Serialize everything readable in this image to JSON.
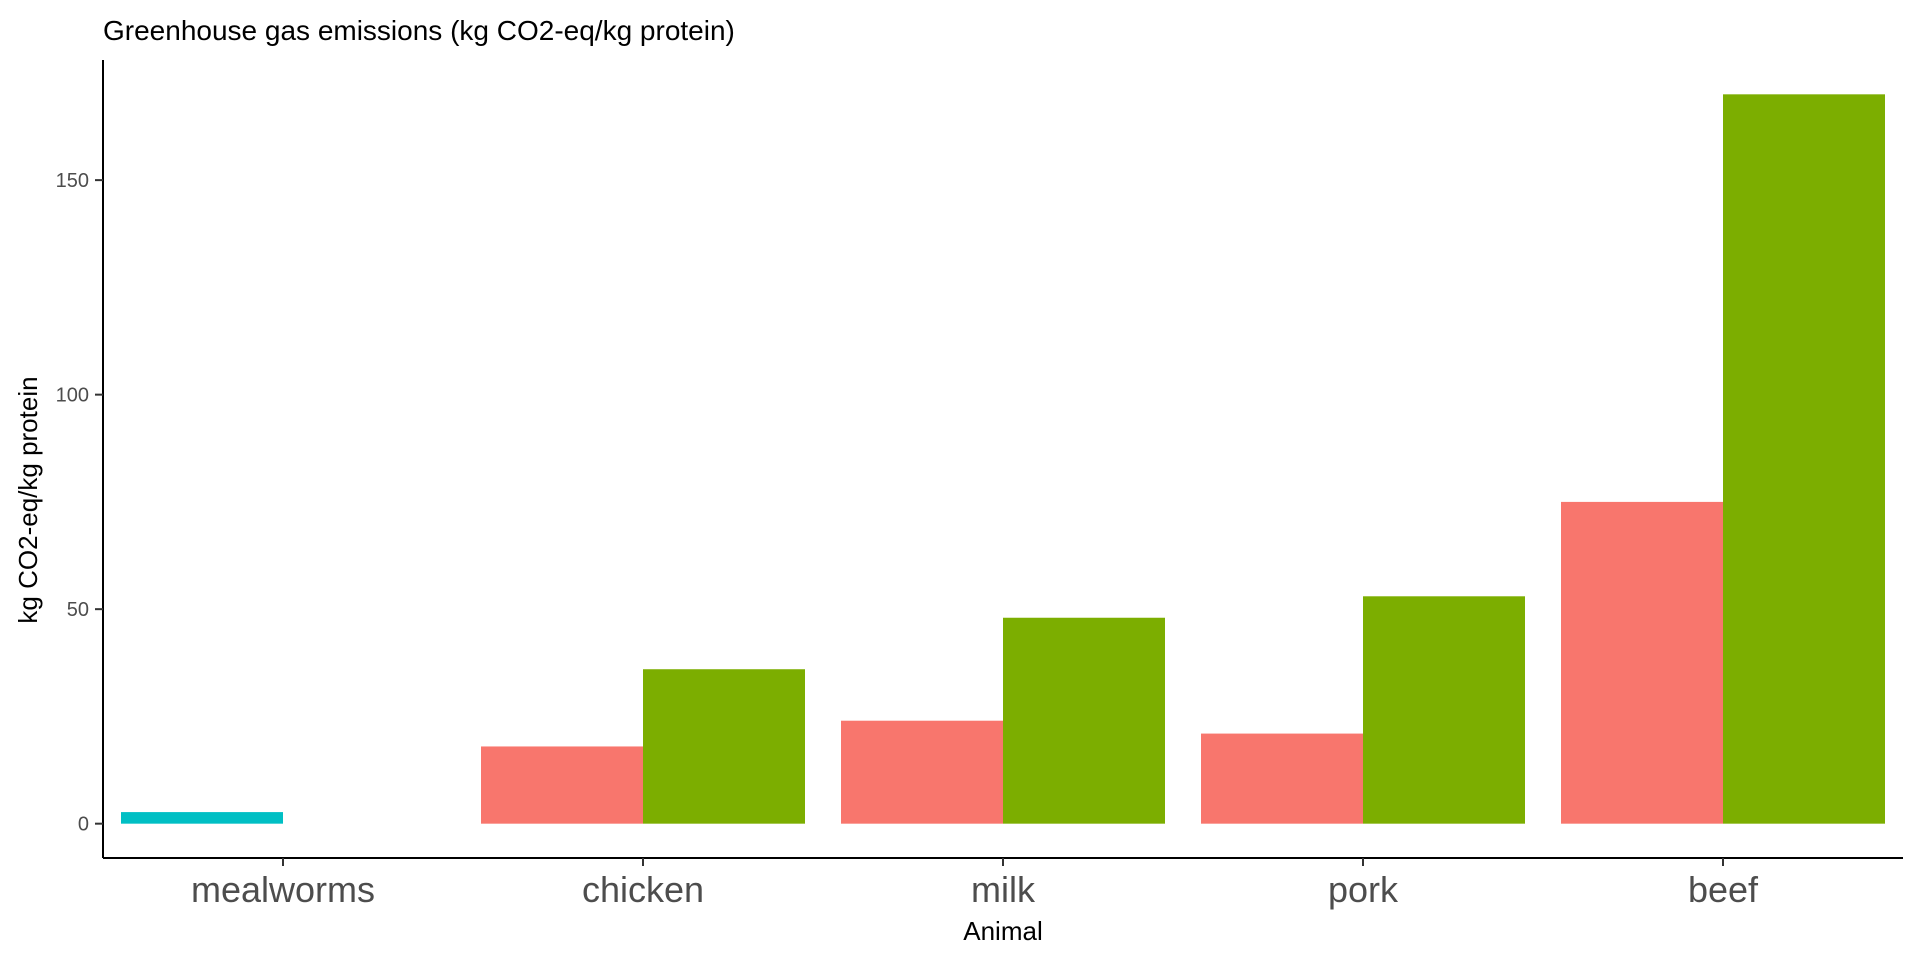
{
  "chart_data": {
    "type": "bar",
    "title": "Greenhouse gas emissions (kg CO2-eq/kg protein)",
    "xlabel": "Animal",
    "ylabel": "kg CO2-eq/kg protein",
    "categories": [
      "mealworms",
      "chicken",
      "milk",
      "pork",
      "beef"
    ],
    "ylim": [
      -8,
      178
    ],
    "yticks": [
      0,
      50,
      100,
      150
    ],
    "ytick_labels": [
      "0",
      "50",
      "100",
      "150"
    ],
    "grid": false,
    "legend": "none",
    "series": [
      {
        "color": "#F8766D",
        "values": [
          null,
          18,
          24,
          21,
          75
        ]
      },
      {
        "color": "#7CAE00",
        "values": [
          null,
          36,
          48,
          53,
          170
        ]
      },
      {
        "color": "#00BFC4",
        "values": [
          2.7,
          null,
          null,
          null,
          null
        ]
      }
    ]
  }
}
